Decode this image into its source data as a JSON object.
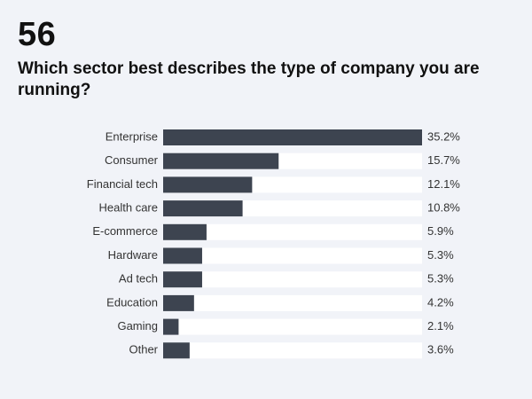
{
  "header": {
    "number": "56",
    "question": "Which sector best describes the type of company you are running?"
  },
  "colors": {
    "background": "#f1f3f8",
    "track": "#ffffff",
    "bar": "#3d4450",
    "text": "#333333"
  },
  "chart_data": {
    "type": "bar",
    "orientation": "horizontal",
    "title": "Which sector best describes the type of company you are running?",
    "categories": [
      "Enterprise",
      "Consumer",
      "Financial tech",
      "Health care",
      "E-commerce",
      "Hardware",
      "Ad tech",
      "Education",
      "Gaming",
      "Other"
    ],
    "values": [
      35.2,
      15.7,
      12.1,
      10.8,
      5.9,
      5.3,
      5.3,
      4.2,
      2.1,
      3.6
    ],
    "value_labels": [
      "35.2%",
      "15.7%",
      "12.1%",
      "10.8%",
      "5.9%",
      "5.3%",
      "5.3%",
      "4.2%",
      "2.1%",
      "3.6%"
    ],
    "unit": "%",
    "xlim": [
      0,
      35.2
    ],
    "grid": false,
    "legend": "none"
  }
}
